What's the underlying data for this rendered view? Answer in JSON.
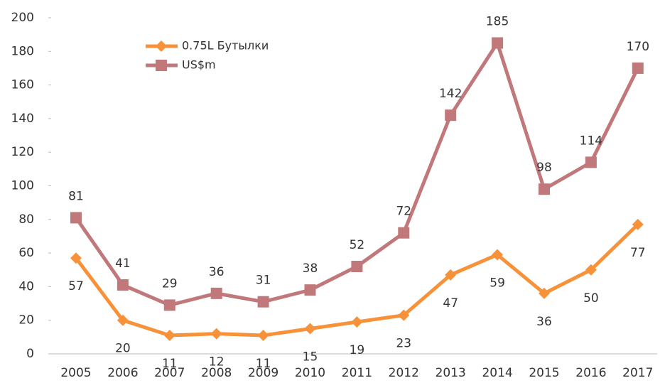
{
  "chart_data": {
    "type": "line",
    "categories": [
      "2005",
      "2006",
      "2007",
      "2008",
      "2009",
      "2010",
      "2011",
      "2012",
      "2013",
      "2014",
      "2015",
      "2016",
      "2017"
    ],
    "series": [
      {
        "name": "0.75L Бутылки",
        "color": "#f7923a",
        "marker": "diamond",
        "values": [
          57,
          20,
          11,
          12,
          11,
          15,
          19,
          23,
          47,
          59,
          36,
          50,
          77
        ]
      },
      {
        "name": "US$m",
        "color": "#c0787a",
        "marker": "square",
        "values": [
          81,
          41,
          29,
          36,
          31,
          38,
          52,
          72,
          142,
          185,
          98,
          114,
          170
        ]
      }
    ],
    "ylim": [
      0,
      200
    ],
    "yticks": [
      0,
      20,
      40,
      60,
      80,
      100,
      120,
      140,
      160,
      180,
      200
    ],
    "grid": false
  }
}
